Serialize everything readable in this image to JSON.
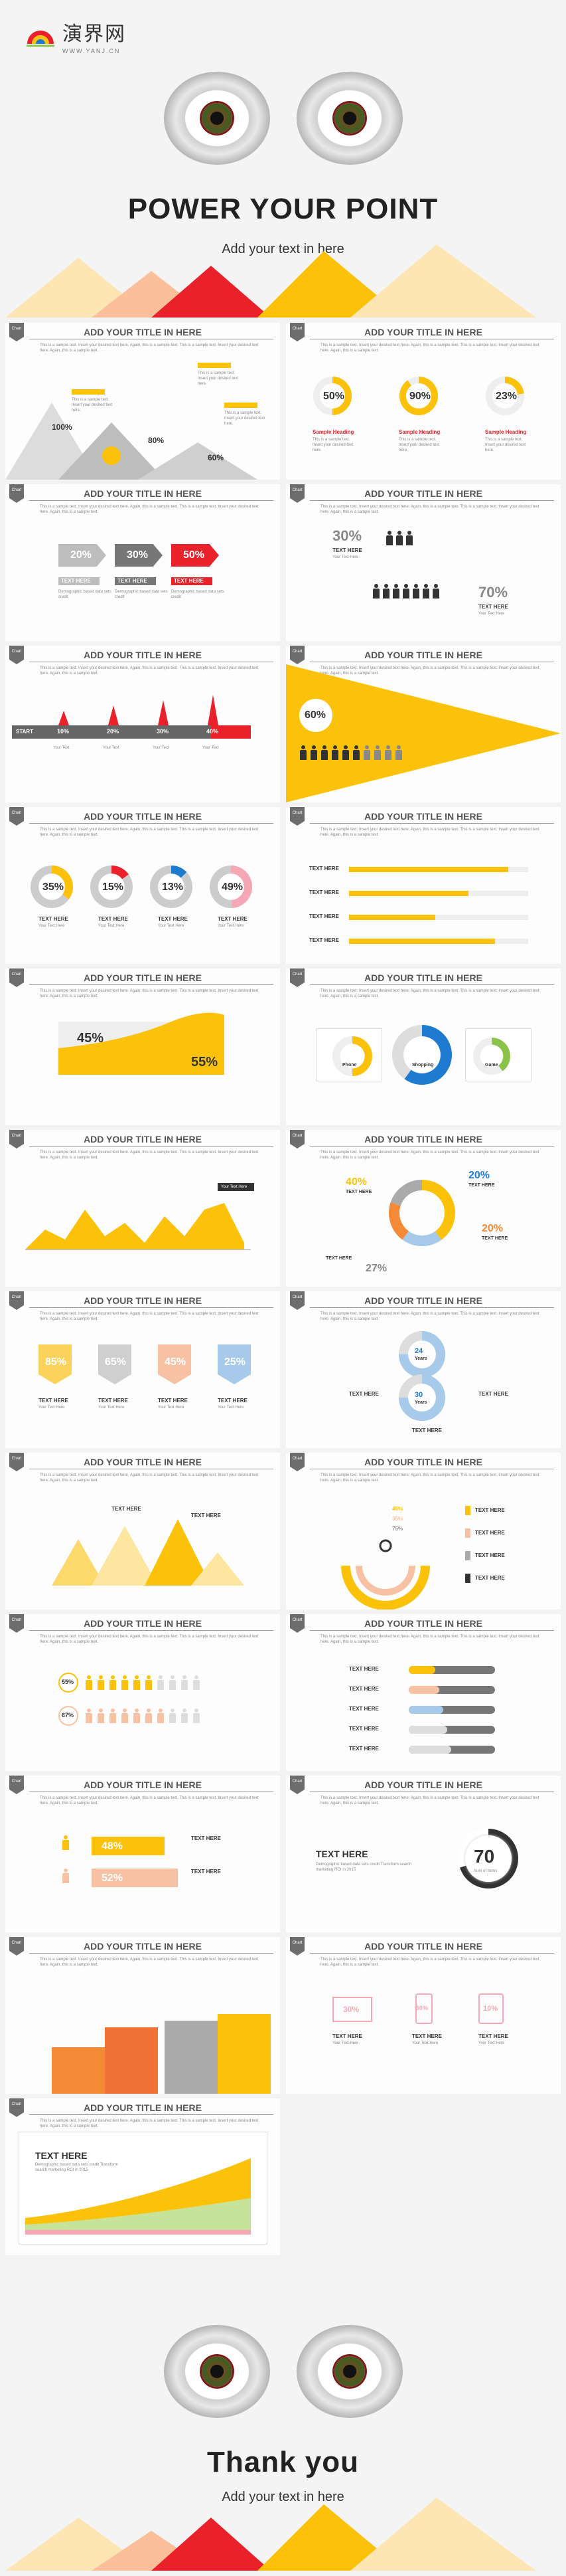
{
  "brand": {
    "name_cn": "演界网",
    "url": "WWW.YANJ.CN"
  },
  "cover_top": {
    "title": "POWER YOUR POINT",
    "subtitle": "Add your text in here"
  },
  "cover_bottom": {
    "title": "Thank you",
    "subtitle": "Add your text in here"
  },
  "slide_common": {
    "tag": "Chart",
    "title": "ADD YOUR TITLE IN HERE",
    "desc": "This is a sample text. Insert your desired text here. Again, this is a sample text. This is a sample text. Insert your desired text here. Again, this is a sample text.",
    "sample_heading": "Sample Heading",
    "sample_text": "This is a sample text. Insert your desired text here.",
    "text_here": "TEXT HERE",
    "text_here_lower": "Text Here",
    "caption": "Demographic based data sets credit",
    "your_text_here": "Your Text Here",
    "your_text": "Your Text"
  },
  "s1": {
    "values": [
      "100%",
      "80%",
      "60%"
    ]
  },
  "s2": {
    "values": [
      "50%",
      "90%",
      "23%"
    ]
  },
  "s3": {
    "values": [
      "20%",
      "30%",
      "50%"
    ]
  },
  "s4": {
    "values": [
      "30%",
      "70%"
    ]
  },
  "s5": {
    "start": "START",
    "values": [
      "10%",
      "20%",
      "30%",
      "40%"
    ]
  },
  "s6": {
    "value": "60%"
  },
  "s7": {
    "values": [
      "35%",
      "15%",
      "13%",
      "49%"
    ]
  },
  "s8": {
    "rows": 4
  },
  "s9": {
    "values": [
      "45%",
      "55%"
    ]
  },
  "s10": {
    "labels": [
      "Phone",
      "Shopping",
      "Game"
    ]
  },
  "s12": {
    "values": [
      "40%",
      "20%",
      "20%",
      "27%"
    ]
  },
  "s13": {
    "values": [
      "85%",
      "65%",
      "45%",
      "25%"
    ]
  },
  "s14": {
    "values": [
      "20 Years",
      "30 Years"
    ],
    "t1": "24",
    "t2": "30",
    "lbl_a": "Years",
    "lbl_b": "Years"
  },
  "s16": {
    "values": [
      "45%",
      "35%",
      "75%"
    ]
  },
  "s17": {
    "values": [
      "55%",
      "67%"
    ]
  },
  "s19": {
    "values": [
      "48%",
      "52%"
    ]
  },
  "s20": {
    "value": "70",
    "value_label": "Sum of Items",
    "caption": "Demographic based data sets credit Transform search marketing ROI in 2015"
  },
  "s22": {
    "values": [
      "30%",
      "60%",
      "10%"
    ]
  },
  "s23": {
    "caption": "Demographic based data sets credit Transform search marketing ROI in 2015"
  },
  "colors": {
    "yellow": "#fcc20a",
    "red": "#e8212a",
    "gray": "#777777",
    "blue": "#1e7bd0",
    "pink": "#f6a7b5",
    "orange": "#f48a36",
    "peach": "#f7c2a4",
    "lightblue": "#a7c9ea",
    "green": "#8bc34a"
  }
}
